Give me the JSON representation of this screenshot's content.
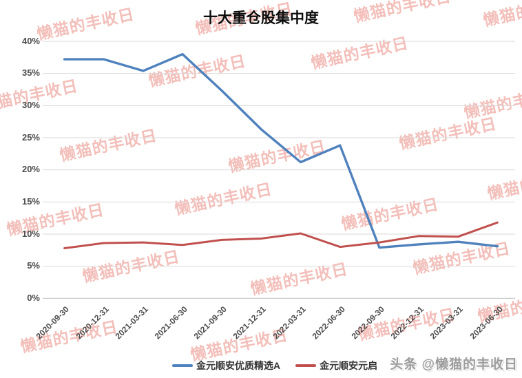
{
  "title": "十大重仓股集中度",
  "watermark": {
    "text": "懒猫的丰收日"
  },
  "source_badge": {
    "text": "头条 @懒猫的丰收日"
  },
  "colors": {
    "series1": "#4F81BD",
    "series2": "#C0504D",
    "gridline": "#D9D9D9",
    "axis_line": "#BFBFBF",
    "axis_label": "#4D4D4D",
    "watermark_pink": "#E98A82",
    "source_gray": "#9D9D9D"
  },
  "chart_data": {
    "type": "line",
    "title": "十大重仓股集中度",
    "categories": [
      "2020-09-30",
      "2020-12-31",
      "2021-03-31",
      "2021-06-30",
      "2021-09-30",
      "2021-12-31",
      "2022-03-31",
      "2022-06-30",
      "2022-09-30",
      "2022-12-31",
      "2023-03-31",
      "2023-06-30"
    ],
    "series": [
      {
        "name": "金元顺安优质精选A",
        "color": "#4F81BD",
        "values": [
          37.2,
          37.2,
          35.4,
          38.0,
          32.3,
          26.3,
          21.2,
          23.8,
          7.9,
          8.4,
          8.8,
          8.1
        ]
      },
      {
        "name": "金元顺安元启",
        "color": "#C0504D",
        "values": [
          7.8,
          8.6,
          8.7,
          8.3,
          9.1,
          9.3,
          10.1,
          8.0,
          8.7,
          9.7,
          9.6,
          11.8
        ]
      }
    ],
    "xlabel": "",
    "ylabel": "",
    "ylim": [
      0,
      40
    ],
    "ytick_labels": [
      "0%",
      "5%",
      "10%",
      "15%",
      "20%",
      "25%",
      "30%",
      "35%",
      "40%"
    ],
    "grid": true,
    "legend_position": "bottom"
  }
}
